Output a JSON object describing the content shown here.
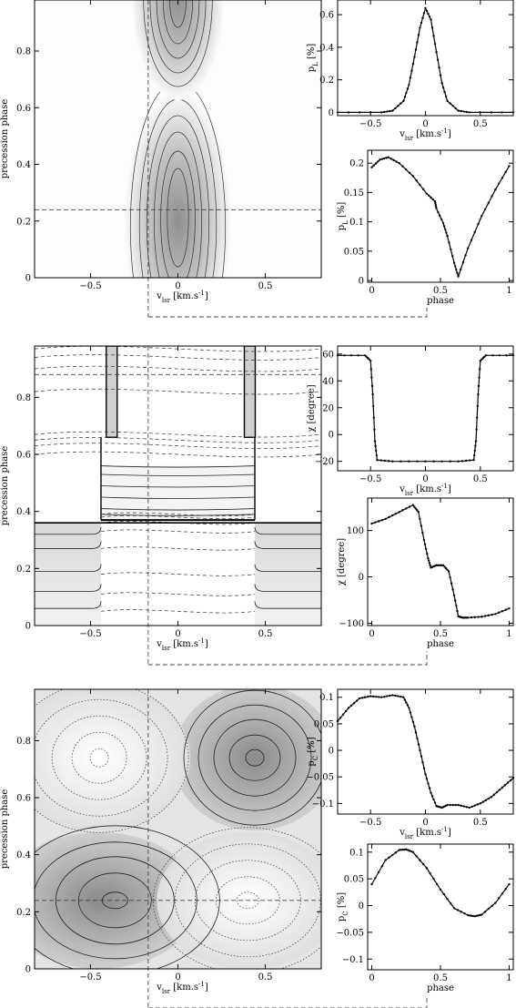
{
  "figure": {
    "panels": [
      {
        "id": "pl",
        "map": {
          "xlabel": "v_lsr [km.s^-1]",
          "ylabel": "precession phase",
          "xticks": [
            "−0.5",
            "0",
            "0.5"
          ],
          "yticks": [
            "0",
            "0.2",
            "0.4",
            "0.6",
            "0.8"
          ],
          "cut_velocity": -0.17,
          "cut_phase": 0.24
        },
        "vel_plot": {
          "xlabel": "v_lsr [km.s^-1]",
          "ylabel": "p_L [%]",
          "xticks": [
            "−0.5",
            "0",
            "0.5"
          ],
          "yticks": [
            "0",
            "0.2",
            "0.4",
            "0.6"
          ]
        },
        "phase_plot": {
          "xlabel": "phase",
          "ylabel": "p_L [%]",
          "xticks": [
            "0",
            "0.5",
            "1"
          ],
          "yticks": [
            "0",
            "0.05",
            "0.1",
            "0.15",
            "0.2"
          ]
        }
      },
      {
        "id": "chi",
        "map": {
          "xlabel": "v_lsr [km.s^-1]",
          "ylabel": "precession phase",
          "xticks": [
            "−0.5",
            "0",
            "0.5"
          ],
          "yticks": [
            "0",
            "0.2",
            "0.4",
            "0.6",
            "0.8"
          ],
          "cut_velocity": -0.17,
          "cut_phase": 0.88
        },
        "vel_plot": {
          "xlabel": "v_lsr [km.s^-1]",
          "ylabel": "χ [degree]",
          "xticks": [
            "−0.5",
            "0",
            "0.5"
          ],
          "yticks": [
            "−20",
            "0",
            "20",
            "40",
            "60"
          ]
        },
        "phase_plot": {
          "xlabel": "phase",
          "ylabel": "χ [degree]",
          "xticks": [
            "0",
            "0.5",
            "1"
          ],
          "yticks": [
            "−100",
            "0",
            "100"
          ]
        }
      },
      {
        "id": "pc",
        "map": {
          "xlabel": "v_lsr [km.s^-1]",
          "ylabel": "precession phase",
          "xticks": [
            "−0.5",
            "0",
            "0.5"
          ],
          "yticks": [
            "0",
            "0.2",
            "0.4",
            "0.6",
            "0.8"
          ],
          "cut_velocity": -0.17,
          "cut_phase": 0.24
        },
        "vel_plot": {
          "xlabel": "v_lsr [km.s^-1]",
          "ylabel": "p_C [%]",
          "xticks": [
            "−0.5",
            "0",
            "0.5"
          ],
          "yticks": [
            "−0.1",
            "−0.05",
            "0",
            "0.05",
            "0.1"
          ]
        },
        "phase_plot": {
          "xlabel": "phase",
          "ylabel": "p_C [%]",
          "xticks": [
            "0",
            "0.5",
            "1"
          ],
          "yticks": [
            "−0.1",
            "−0.05",
            "0",
            "0.05",
            "0.1"
          ]
        }
      }
    ]
  },
  "chart_data": [
    {
      "type": "heatmap",
      "panel": "pl",
      "xlabel": "v_lsr [km.s^-1]",
      "ylabel": "precession phase",
      "xlim": [
        -0.82,
        0.82
      ],
      "ylim": [
        0,
        0.98
      ],
      "description_values": {
        "peak_velocity": 0.0,
        "peak_phases": [
          0.2,
          0.98
        ]
      },
      "lines": {
        "vertical_velocity": -0.17,
        "horizontal_phase": 0.24
      }
    },
    {
      "type": "line",
      "panel": "pl",
      "xlabel": "v_lsr [km.s^-1]",
      "ylabel": "p_L [%]",
      "xlim": [
        -0.8,
        0.8
      ],
      "ylim": [
        -0.02,
        0.69
      ],
      "x": [
        -0.8,
        -0.4,
        -0.3,
        -0.2,
        -0.15,
        -0.1,
        -0.05,
        0.0,
        0.05,
        0.1,
        0.15,
        0.2,
        0.3,
        0.4,
        0.8
      ],
      "y": [
        0.0,
        0.0,
        0.01,
        0.07,
        0.17,
        0.34,
        0.52,
        0.64,
        0.57,
        0.37,
        0.18,
        0.07,
        0.01,
        0.0,
        0.0
      ]
    },
    {
      "type": "line",
      "panel": "pl",
      "xlabel": "phase",
      "ylabel": "p_L [%]",
      "xlim": [
        -0.03,
        1.03
      ],
      "ylim": [
        -0.003,
        0.222
      ],
      "x": [
        0.0,
        0.06,
        0.12,
        0.2,
        0.3,
        0.4,
        0.46,
        0.47,
        0.52,
        0.55,
        0.6,
        0.63,
        0.7,
        0.8,
        0.9,
        1.0
      ],
      "y": [
        0.193,
        0.206,
        0.21,
        0.2,
        0.178,
        0.148,
        0.135,
        0.123,
        0.098,
        0.076,
        0.03,
        0.007,
        0.055,
        0.11,
        0.155,
        0.195
      ]
    },
    {
      "type": "heatmap",
      "panel": "chi",
      "xlabel": "v_lsr [km.s^-1]",
      "ylabel": "precession phase",
      "xlim": [
        -0.82,
        0.82
      ],
      "ylim": [
        0,
        0.98
      ],
      "lines": {
        "vertical_velocity": -0.17,
        "horizontal_phase": 0.88
      }
    },
    {
      "type": "line",
      "panel": "chi",
      "xlabel": "v_lsr [km.s^-1]",
      "ylabel": "χ [degree]",
      "xlim": [
        -0.8,
        0.8
      ],
      "ylim": [
        -27,
        66
      ],
      "x": [
        -0.8,
        -0.55,
        -0.5,
        -0.48,
        -0.46,
        -0.44,
        -0.3,
        0.0,
        0.3,
        0.44,
        0.46,
        0.48,
        0.5,
        0.55,
        0.8
      ],
      "y": [
        59,
        59,
        55,
        30,
        -5,
        -19,
        -20,
        -20,
        -20,
        -19,
        -5,
        30,
        55,
        59,
        59
      ]
    },
    {
      "type": "line",
      "panel": "chi",
      "xlabel": "phase",
      "ylabel": "χ [degree]",
      "xlim": [
        -0.03,
        1.03
      ],
      "ylim": [
        -105,
        170
      ],
      "x": [
        0.0,
        0.1,
        0.2,
        0.3,
        0.34,
        0.38,
        0.41,
        0.43,
        0.47,
        0.52,
        0.56,
        0.6,
        0.63,
        0.66,
        0.7,
        0.8,
        0.9,
        1.0
      ],
      "y": [
        115,
        125,
        140,
        155,
        140,
        80,
        40,
        20,
        25,
        25,
        12,
        -40,
        -85,
        -88,
        -88,
        -86,
        -80,
        -68
      ]
    },
    {
      "type": "heatmap",
      "panel": "pc",
      "xlabel": "v_lsr [km.s^-1]",
      "ylabel": "precession phase",
      "xlim": [
        -0.82,
        0.82
      ],
      "ylim": [
        0,
        0.98
      ],
      "lines": {
        "vertical_velocity": -0.17,
        "horizontal_phase": 0.24
      }
    },
    {
      "type": "line",
      "panel": "pc",
      "xlabel": "v_lsr [km.s^-1]",
      "ylabel": "p_C [%]",
      "xlim": [
        -0.8,
        0.8
      ],
      "ylim": [
        -0.12,
        0.115
      ],
      "x": [
        -0.8,
        -0.7,
        -0.6,
        -0.5,
        -0.4,
        -0.3,
        -0.2,
        -0.15,
        -0.1,
        -0.05,
        0.0,
        0.05,
        0.1,
        0.15,
        0.2,
        0.3,
        0.4,
        0.5,
        0.6,
        0.7,
        0.8
      ],
      "y": [
        0.055,
        0.08,
        0.098,
        0.102,
        0.1,
        0.104,
        0.1,
        0.08,
        0.045,
        0.0,
        -0.045,
        -0.08,
        -0.105,
        -0.108,
        -0.103,
        -0.103,
        -0.108,
        -0.1,
        -0.088,
        -0.07,
        -0.052
      ]
    },
    {
      "type": "line",
      "panel": "pc",
      "xlabel": "phase",
      "ylabel": "p_C [%]",
      "xlim": [
        -0.03,
        1.03
      ],
      "ylim": [
        -0.12,
        0.115
      ],
      "x": [
        0.0,
        0.1,
        0.2,
        0.25,
        0.3,
        0.4,
        0.5,
        0.6,
        0.7,
        0.75,
        0.8,
        0.9,
        1.0
      ],
      "y": [
        0.04,
        0.085,
        0.104,
        0.105,
        0.1,
        0.07,
        0.03,
        -0.005,
        -0.018,
        -0.02,
        -0.017,
        0.005,
        0.04
      ]
    }
  ]
}
